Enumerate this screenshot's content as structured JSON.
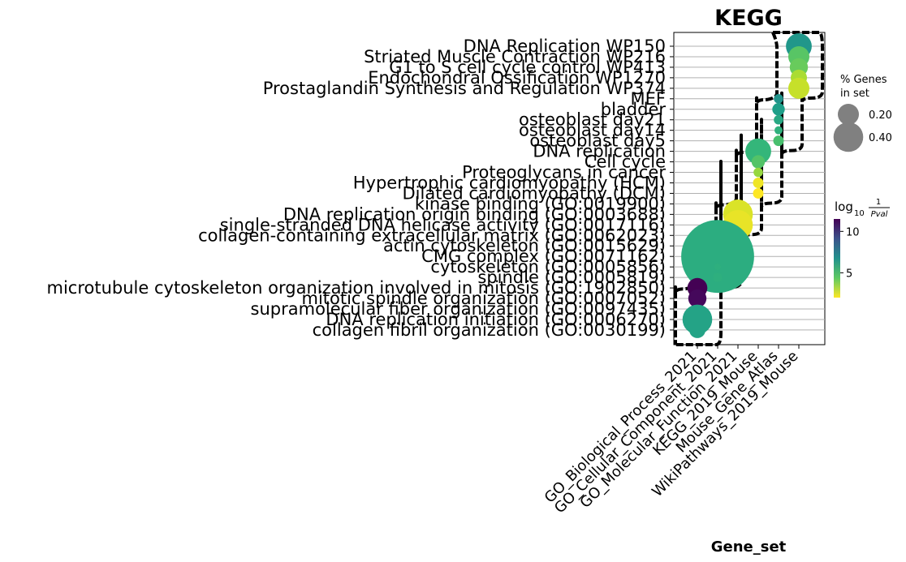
{
  "chart_data": {
    "type": "scatter",
    "title": "KEGG",
    "xlabel": "Gene_set",
    "ylabel": "",
    "x_categories": [
      "GO_Biological_Process_2021",
      "GO_Cellular_Component_2021",
      "GO_Molecular_Function_2021",
      "KEGG_2019_Mouse",
      "Mouse_Gene_Atlas",
      "WikiPathways_2019_Mouse"
    ],
    "y_categories": [
      "DNA Replication WP150",
      "Striated Muscle Contraction WP216",
      "G1 to S cell cycle control WP413",
      "Endochondral Ossification WP1270",
      "Prostaglandin Synthesis and Regulation WP374",
      "MEF",
      "bladder",
      "osteoblast day21",
      "osteoblast day14",
      "osteoblast day5",
      "DNA replication",
      "Cell cycle",
      "Proteoglycans in cancer",
      "Hypertrophic cardiomyopathy (HCM)",
      "Dilated cardiomyopathy (DCM)",
      "kinase binding (GO:0019900)",
      "DNA replication origin binding (GO:0003688)",
      "single-stranded DNA helicase activity (GO:0017116)",
      "collagen-containing extracellular matrix (GO:0062023)",
      "actin cytoskeleton (GO:0015629)",
      "CMG complex (GO:0071162)",
      "cytoskeleton (GO:0005856)",
      "spindle (GO:0005819)",
      "microtubule cytoskeleton organization involved in mitosis (GO:1902850)",
      "mitotic spindle organization (GO:0007052)",
      "supramolecular fiber organization (GO:0097435)",
      "DNA replication initiation (GO:0006270)",
      "collagen fibril organization (GO:0030199)"
    ],
    "points": [
      {
        "x": "WikiPathways_2019_Mouse",
        "y": "DNA Replication WP150",
        "size": 0.3,
        "log10_inv_pval": 6.5
      },
      {
        "x": "WikiPathways_2019_Mouse",
        "y": "Striated Muscle Contraction WP216",
        "size": 0.2,
        "log10_inv_pval": 4.5
      },
      {
        "x": "WikiPathways_2019_Mouse",
        "y": "G1 to S cell cycle control WP413",
        "size": 0.15,
        "log10_inv_pval": 4.2
      },
      {
        "x": "WikiPathways_2019_Mouse",
        "y": "Endochondral Ossification WP1270",
        "size": 0.12,
        "log10_inv_pval": 3.2
      },
      {
        "x": "WikiPathways_2019_Mouse",
        "y": "Prostaglandin Synthesis and Regulation WP374",
        "size": 0.2,
        "log10_inv_pval": 2.8
      },
      {
        "x": "Mouse_Gene_Atlas",
        "y": "MEF",
        "size": 0.04,
        "log10_inv_pval": 6.6
      },
      {
        "x": "Mouse_Gene_Atlas",
        "y": "bladder",
        "size": 0.07,
        "log10_inv_pval": 6.2
      },
      {
        "x": "Mouse_Gene_Atlas",
        "y": "osteoblast day21",
        "size": 0.04,
        "log10_inv_pval": 5.8
      },
      {
        "x": "Mouse_Gene_Atlas",
        "y": "osteoblast day14",
        "size": 0.03,
        "log10_inv_pval": 5.4
      },
      {
        "x": "Mouse_Gene_Atlas",
        "y": "osteoblast day5",
        "size": 0.05,
        "log10_inv_pval": 4.8
      },
      {
        "x": "KEGG_2019_Mouse",
        "y": "DNA replication",
        "size": 0.3,
        "log10_inv_pval": 5.2
      },
      {
        "x": "KEGG_2019_Mouse",
        "y": "Cell cycle",
        "size": 0.08,
        "log10_inv_pval": 4.6
      },
      {
        "x": "KEGG_2019_Mouse",
        "y": "Proteoglycans in cancer",
        "size": 0.04,
        "log10_inv_pval": 3.5
      },
      {
        "x": "KEGG_2019_Mouse",
        "y": "Hypertrophic cardiomyopathy (HCM)",
        "size": 0.05,
        "log10_inv_pval": 2.2
      },
      {
        "x": "KEGG_2019_Mouse",
        "y": "Dilated cardiomyopathy (DCM)",
        "size": 0.05,
        "log10_inv_pval": 2.0
      },
      {
        "x": "GO_Molecular_Function_2021",
        "y": "kinase binding (GO:0019900)",
        "size": 0.02,
        "log10_inv_pval": 2.1
      },
      {
        "x": "GO_Molecular_Function_2021",
        "y": "DNA replication origin binding (GO:0003688)",
        "size": 0.4,
        "log10_inv_pval": 2.5
      },
      {
        "x": "GO_Molecular_Function_2021",
        "y": "single-stranded DNA helicase activity (GO:0017116)",
        "size": 0.4,
        "log10_inv_pval": 2.3
      },
      {
        "x": "GO_Cellular_Component_2021",
        "y": "collagen-containing extracellular matrix (GO:0062023)",
        "size": 0.02,
        "log10_inv_pval": 5.5
      },
      {
        "x": "GO_Cellular_Component_2021",
        "y": "actin cytoskeleton (GO:0015629)",
        "size": 0.02,
        "log10_inv_pval": 5.5
      },
      {
        "x": "GO_Cellular_Component_2021",
        "y": "CMG complex (GO:0071162)",
        "size": 2.4,
        "log10_inv_pval": 5.6
      },
      {
        "x": "GO_Cellular_Component_2021",
        "y": "cytoskeleton (GO:0005856)",
        "size": 0.02,
        "log10_inv_pval": 5.5
      },
      {
        "x": "GO_Cellular_Component_2021",
        "y": "spindle (GO:0005819)",
        "size": 0.04,
        "log10_inv_pval": 5.5
      },
      {
        "x": "GO_Biological_Process_2021",
        "y": "microtubule cytoskeleton organization involved in mitosis (GO:1902850)",
        "size": 0.18,
        "log10_inv_pval": 11.5
      },
      {
        "x": "GO_Biological_Process_2021",
        "y": "mitotic spindle organization (GO:0007052)",
        "size": 0.15,
        "log10_inv_pval": 11.3
      },
      {
        "x": "GO_Biological_Process_2021",
        "y": "supramolecular fiber organization (GO:0097435)",
        "size": 0.03,
        "log10_inv_pval": 6.0
      },
      {
        "x": "GO_Biological_Process_2021",
        "y": "DNA replication initiation (GO:0006270)",
        "size": 0.4,
        "log10_inv_pval": 6.0
      },
      {
        "x": "GO_Biological_Process_2021",
        "y": "collagen fibril organization (GO:0030199)",
        "size": 0.12,
        "log10_inv_pval": 6.0
      }
    ],
    "size_legend": {
      "title_line1": "% Genes",
      "title_line2": "in set",
      "entries": [
        {
          "value": 0.2,
          "label": "0.20"
        },
        {
          "value": 0.4,
          "label": "0.40"
        }
      ]
    },
    "colorbar": {
      "label_prefix": "log",
      "label_sub": "10",
      "label_num": "1",
      "label_den": "Pval",
      "range": [
        2,
        11.5
      ],
      "ticks": [
        {
          "value": 10,
          "label": "10"
        },
        {
          "value": 5,
          "label": "5"
        }
      ],
      "colormap": "viridis_r"
    },
    "grid": true,
    "outline": "black dashed boundary around the diagonal block"
  }
}
